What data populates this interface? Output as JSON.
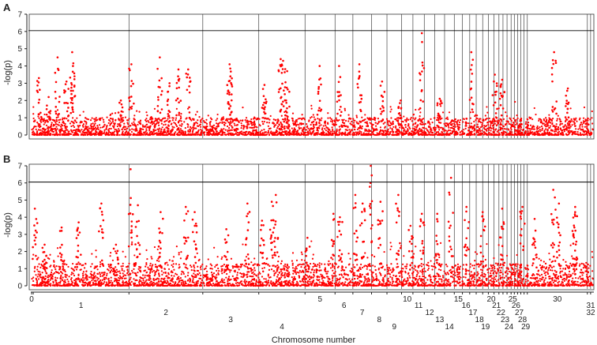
{
  "chart_data": {
    "type": "scatter",
    "title": "",
    "xlabel": "Chromosome number",
    "ylabel": "-log(p)",
    "colors": {
      "points": "#ff0000",
      "threshold": "#000000",
      "separator": "#444444"
    },
    "panels": [
      {
        "label": "A",
        "ylim": [
          0,
          7
        ],
        "yticks": [
          "0",
          "1",
          "2",
          "3",
          "4",
          "5",
          "6",
          "7"
        ],
        "threshold": 6.05,
        "peaks": [
          {
            "x": 0.9,
            "y": 3.3
          },
          {
            "x": 2.1,
            "y": 2.2
          },
          {
            "x": 3.2,
            "y": 4.5
          },
          {
            "x": 4.3,
            "y": 3.1
          },
          {
            "x": 5.0,
            "y": 4.8
          },
          {
            "x": 5.1,
            "y": 4.0
          },
          {
            "x": 11.0,
            "y": 2.0
          },
          {
            "x": 12.3,
            "y": 4.1
          },
          {
            "x": 15.8,
            "y": 4.5
          },
          {
            "x": 17.0,
            "y": 3.0
          },
          {
            "x": 18.1,
            "y": 3.8
          },
          {
            "x": 19.3,
            "y": 3.8
          },
          {
            "x": 24.4,
            "y": 4.1
          },
          {
            "x": 24.5,
            "y": 3.4
          },
          {
            "x": 28.7,
            "y": 2.9
          },
          {
            "x": 30.7,
            "y": 4.4
          },
          {
            "x": 31.0,
            "y": 4.3
          },
          {
            "x": 31.5,
            "y": 3.7
          },
          {
            "x": 35.5,
            "y": 4.0
          },
          {
            "x": 37.9,
            "y": 4.0
          },
          {
            "x": 40.4,
            "y": 4.1
          },
          {
            "x": 43.2,
            "y": 3.1
          },
          {
            "x": 45.5,
            "y": 2.0
          },
          {
            "x": 48.1,
            "y": 5.9
          },
          {
            "x": 50.3,
            "y": 2.1
          },
          {
            "x": 54.2,
            "y": 4.8
          },
          {
            "x": 57.1,
            "y": 3.5
          },
          {
            "x": 58.0,
            "y": 3.2
          },
          {
            "x": 64.4,
            "y": 4.8
          },
          {
            "x": 66.1,
            "y": 2.7
          }
        ]
      },
      {
        "label": "B",
        "ylim": [
          0,
          7
        ],
        "yticks": [
          "0",
          "1",
          "2",
          "3",
          "4",
          "5",
          "6",
          "7"
        ],
        "threshold": 6.05,
        "peaks": [
          {
            "x": 0.4,
            "y": 4.5
          },
          {
            "x": 1.6,
            "y": 2.4
          },
          {
            "x": 3.7,
            "y": 3.4
          },
          {
            "x": 5.8,
            "y": 3.7
          },
          {
            "x": 8.6,
            "y": 4.8
          },
          {
            "x": 10.4,
            "y": 2.4
          },
          {
            "x": 12.2,
            "y": 6.8
          },
          {
            "x": 13.1,
            "y": 4.7
          },
          {
            "x": 15.9,
            "y": 4.3
          },
          {
            "x": 19.0,
            "y": 4.6
          },
          {
            "x": 20.1,
            "y": 4.3
          },
          {
            "x": 24.0,
            "y": 3.3
          },
          {
            "x": 26.6,
            "y": 4.8
          },
          {
            "x": 28.4,
            "y": 3.8
          },
          {
            "x": 29.6,
            "y": 4.9
          },
          {
            "x": 30.1,
            "y": 5.3
          },
          {
            "x": 34.0,
            "y": 2.8
          },
          {
            "x": 37.2,
            "y": 4.2
          },
          {
            "x": 38.0,
            "y": 4.0
          },
          {
            "x": 39.9,
            "y": 5.3
          },
          {
            "x": 40.8,
            "y": 4.8
          },
          {
            "x": 41.8,
            "y": 7.0
          },
          {
            "x": 43.0,
            "y": 4.9
          },
          {
            "x": 45.2,
            "y": 5.3
          },
          {
            "x": 46.7,
            "y": 3.5
          },
          {
            "x": 48.1,
            "y": 4.2
          },
          {
            "x": 50.0,
            "y": 4.2
          },
          {
            "x": 51.7,
            "y": 6.3
          },
          {
            "x": 53.6,
            "y": 4.6
          },
          {
            "x": 55.6,
            "y": 4.3
          },
          {
            "x": 58.0,
            "y": 4.5
          },
          {
            "x": 60.5,
            "y": 4.6
          },
          {
            "x": 62.0,
            "y": 3.9
          },
          {
            "x": 64.3,
            "y": 5.6
          },
          {
            "x": 65.0,
            "y": 4.8
          },
          {
            "x": 66.9,
            "y": 3.4
          },
          {
            "x": 67.0,
            "y": 4.6
          }
        ]
      }
    ],
    "chromosomes": [
      {
        "label": "0",
        "start": 0,
        "end": 0.2,
        "row": 0
      },
      {
        "label": "1",
        "start": 0.2,
        "end": 12.0,
        "row": 1
      },
      {
        "label": "2",
        "start": 12.0,
        "end": 21.1,
        "row": 2
      },
      {
        "label": "3",
        "start": 21.1,
        "end": 28.0,
        "row": 3
      },
      {
        "label": "4",
        "start": 28.0,
        "end": 33.7,
        "row": 4
      },
      {
        "label": "5",
        "start": 33.7,
        "end": 37.4,
        "row": 0
      },
      {
        "label": "6",
        "start": 37.4,
        "end": 39.6,
        "row": 1
      },
      {
        "label": "7",
        "start": 39.6,
        "end": 41.9,
        "row": 2
      },
      {
        "label": "8",
        "start": 41.9,
        "end": 43.8,
        "row": 3
      },
      {
        "label": "9",
        "start": 43.8,
        "end": 45.6,
        "row": 4
      },
      {
        "label": "10",
        "start": 45.6,
        "end": 47.0,
        "row": 0
      },
      {
        "label": "11",
        "start": 47.0,
        "end": 48.4,
        "row": 1
      },
      {
        "label": "12",
        "start": 48.4,
        "end": 49.7,
        "row": 2
      },
      {
        "label": "13",
        "start": 49.7,
        "end": 50.9,
        "row": 3
      },
      {
        "label": "14",
        "start": 50.9,
        "end": 52.1,
        "row": 4
      },
      {
        "label": "15",
        "start": 52.1,
        "end": 53.1,
        "row": 0
      },
      {
        "label": "16",
        "start": 53.1,
        "end": 54.0,
        "row": 1
      },
      {
        "label": "17",
        "start": 54.0,
        "end": 54.8,
        "row": 2
      },
      {
        "label": "18",
        "start": 54.8,
        "end": 55.6,
        "row": 3
      },
      {
        "label": "19",
        "start": 55.6,
        "end": 56.3,
        "row": 4
      },
      {
        "label": "20",
        "start": 56.3,
        "end": 57.0,
        "row": 0
      },
      {
        "label": "21",
        "start": 57.0,
        "end": 57.6,
        "row": 1
      },
      {
        "label": "22",
        "start": 57.6,
        "end": 58.1,
        "row": 2
      },
      {
        "label": "23",
        "start": 58.1,
        "end": 58.6,
        "row": 3
      },
      {
        "label": "24",
        "start": 58.6,
        "end": 59.1,
        "row": 4
      },
      {
        "label": "25",
        "start": 59.1,
        "end": 59.5,
        "row": 0
      },
      {
        "label": "26",
        "start": 59.5,
        "end": 59.9,
        "row": 1
      },
      {
        "label": "27",
        "start": 59.9,
        "end": 60.3,
        "row": 2
      },
      {
        "label": "28",
        "start": 60.3,
        "end": 60.7,
        "row": 3
      },
      {
        "label": "29",
        "start": 60.7,
        "end": 61.1,
        "row": 4
      },
      {
        "label": "30",
        "start": 61.1,
        "end": 68.5,
        "row": 0
      },
      {
        "label": "31",
        "start": 68.5,
        "end": 68.9,
        "row": 1
      },
      {
        "label": "32",
        "start": 68.9,
        "end": 69.3,
        "row": 2
      }
    ],
    "xlim": [
      -0.1,
      69.3
    ],
    "grid": false,
    "legend": "none"
  }
}
